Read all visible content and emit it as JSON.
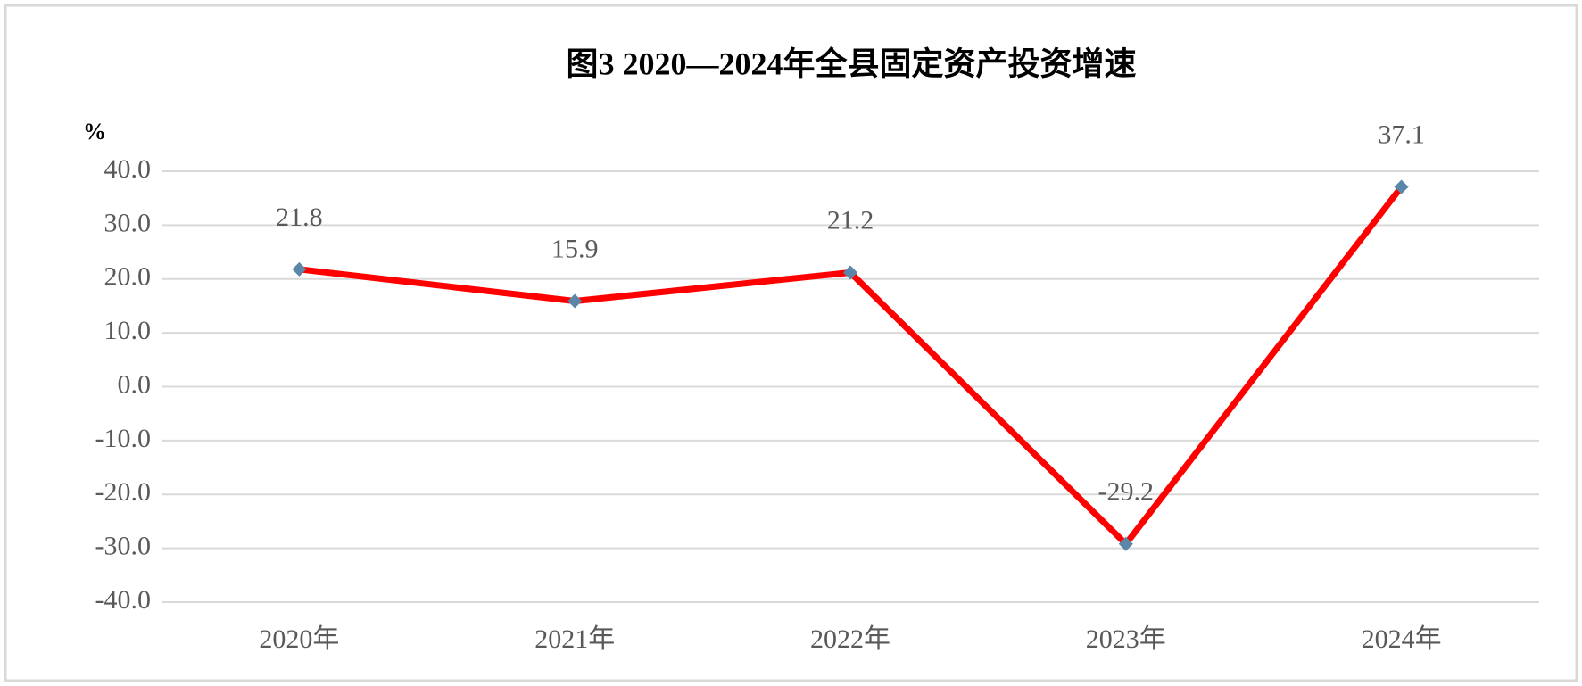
{
  "chart_data": {
    "type": "line",
    "title": "图3   2020—2024年全县固定资产投资增速",
    "y_label": "%",
    "categories": [
      "2020年",
      "2021年",
      "2022年",
      "2023年",
      "2024年"
    ],
    "values": [
      21.8,
      15.9,
      21.2,
      -29.2,
      37.1
    ],
    "color": "#ff0000",
    "marker_color": "#5b86a8",
    "ylim": [
      -40,
      40
    ],
    "yticks": [
      {
        "value": -40,
        "label": "-40.0"
      },
      {
        "value": -30,
        "label": "-30.0"
      },
      {
        "value": -20,
        "label": "-20.0"
      },
      {
        "value": -10,
        "label": "-10.0"
      },
      {
        "value": 0,
        "label": "0.0"
      },
      {
        "value": 10,
        "label": "10.0"
      },
      {
        "value": 20,
        "label": "20.0"
      },
      {
        "value": 30,
        "label": "30.0"
      },
      {
        "value": 40,
        "label": "40.0"
      }
    ],
    "grid": true
  }
}
